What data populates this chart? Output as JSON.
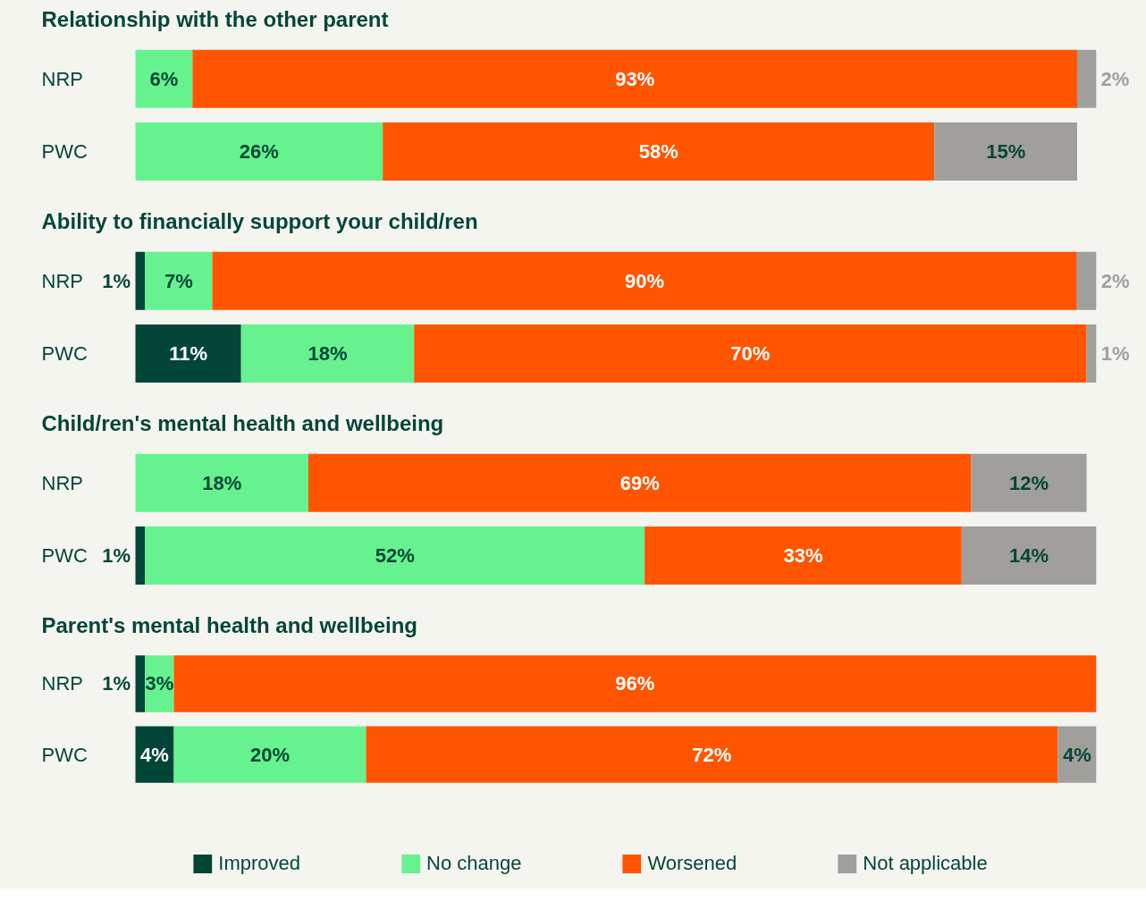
{
  "chart_data": [
    {
      "type": "bar",
      "orientation": "horizontal",
      "stacked": true,
      "title": "Relationship with the other parent",
      "categories": [
        "NRP",
        "PWC"
      ],
      "series": [
        {
          "color": "#66f28f",
          "values": [
            6,
            26
          ],
          "value_labels": [
            "6%",
            "26%"
          ]
        },
        {
          "color": "#ff5500",
          "values": [
            93,
            58
          ],
          "value_labels": [
            "93%",
            "58%"
          ]
        },
        {
          "color": "#a09f9b",
          "values": [
            2,
            15
          ],
          "value_labels": [
            "2%",
            "15%"
          ]
        }
      ]
    },
    {
      "type": "bar",
      "orientation": "horizontal",
      "stacked": true,
      "title": "Ability to financially support your child/ren",
      "categories": [
        "NRP",
        "PWC"
      ],
      "series": [
        {
          "color": "#034638",
          "values": [
            1,
            11
          ],
          "value_labels": [
            "1%",
            "11%"
          ]
        },
        {
          "color": "#66f28f",
          "values": [
            7,
            18
          ],
          "value_labels": [
            "7%",
            "18%"
          ]
        },
        {
          "color": "#ff5500",
          "values": [
            90,
            70
          ],
          "value_labels": [
            "90%",
            "70%"
          ]
        },
        {
          "color": "#a09f9b",
          "values": [
            2,
            1
          ],
          "value_labels": [
            "2%",
            "1%"
          ]
        }
      ]
    },
    {
      "type": "bar",
      "orientation": "horizontal",
      "stacked": true,
      "title": "Child/ren's mental health and wellbeing",
      "categories": [
        "NRP",
        "PWC"
      ],
      "series": [
        {
          "color": "#034638",
          "values": [
            null,
            1
          ],
          "value_labels": [
            null,
            "1%"
          ]
        },
        {
          "color": "#66f28f",
          "values": [
            18,
            52
          ],
          "value_labels": [
            "18%",
            "52%"
          ]
        },
        {
          "color": "#ff5500",
          "values": [
            69,
            33
          ],
          "value_labels": [
            "69%",
            "33%"
          ]
        },
        {
          "color": "#a09f9b",
          "values": [
            12,
            14
          ],
          "value_labels": [
            "12%",
            "14%"
          ]
        }
      ]
    },
    {
      "type": "bar",
      "orientation": "horizontal",
      "stacked": true,
      "legend": "bottom",
      "title": "Parent's mental health and wellbeing",
      "categories": [
        "NRP",
        "PWC"
      ],
      "series": [
        {
          "name": "Improved",
          "color": "#034638",
          "values": [
            1,
            4
          ],
          "value_labels": [
            "1%",
            "4%"
          ]
        },
        {
          "name": "No change",
          "color": "#66f28f",
          "values": [
            3,
            20
          ],
          "value_labels": [
            "3%",
            "20%"
          ]
        },
        {
          "name": "Worsened",
          "color": "#ff5500",
          "values": [
            96,
            72
          ],
          "value_labels": [
            "96%",
            "72%"
          ]
        },
        {
          "name": "Not applicable",
          "color": "#a09f9b",
          "values": [
            null,
            4
          ],
          "value_labels": [
            null,
            "4%"
          ]
        }
      ]
    }
  ]
}
